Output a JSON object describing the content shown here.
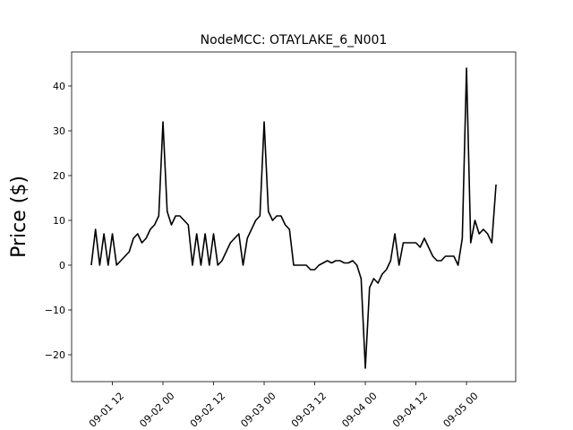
{
  "chart_data": {
    "type": "line",
    "title": "NodeMCC: OTAYLAKE_6_N001",
    "y_label": "Price ($)",
    "x": [
      "09-01 07:00",
      "09-01 08:00",
      "09-01 09:00",
      "09-01 10:00",
      "09-01 11:00",
      "09-01 12:00",
      "09-01 13:00",
      "09-01 14:00",
      "09-01 15:00",
      "09-01 16:00",
      "09-01 17:00",
      "09-01 18:00",
      "09-01 19:00",
      "09-01 20:00",
      "09-01 21:00",
      "09-01 22:00",
      "09-01 23:00",
      "09-02 00:00",
      "09-02 01:00",
      "09-02 02:00",
      "09-02 03:00",
      "09-02 04:00",
      "09-02 05:00",
      "09-02 06:00",
      "09-02 07:00",
      "09-02 08:00",
      "09-02 09:00",
      "09-02 10:00",
      "09-02 11:00",
      "09-02 12:00",
      "09-02 13:00",
      "09-02 14:00",
      "09-02 15:00",
      "09-02 16:00",
      "09-02 17:00",
      "09-02 18:00",
      "09-02 19:00",
      "09-02 20:00",
      "09-02 21:00",
      "09-02 22:00",
      "09-02 23:00",
      "09-03 00:00",
      "09-03 01:00",
      "09-03 02:00",
      "09-03 03:00",
      "09-03 04:00",
      "09-03 05:00",
      "09-03 06:00",
      "09-03 07:00",
      "09-03 08:00",
      "09-03 09:00",
      "09-03 10:00",
      "09-03 11:00",
      "09-03 12:00",
      "09-03 13:00",
      "09-03 14:00",
      "09-03 15:00",
      "09-03 16:00",
      "09-03 17:00",
      "09-03 18:00",
      "09-03 19:00",
      "09-03 20:00",
      "09-03 21:00",
      "09-03 22:00",
      "09-03 23:00",
      "09-04 00:00",
      "09-04 01:00",
      "09-04 02:00",
      "09-04 03:00",
      "09-04 04:00",
      "09-04 05:00",
      "09-04 06:00",
      "09-04 07:00",
      "09-04 08:00",
      "09-04 09:00",
      "09-04 10:00",
      "09-04 11:00",
      "09-04 12:00",
      "09-04 13:00",
      "09-04 14:00",
      "09-04 15:00",
      "09-04 16:00",
      "09-04 17:00",
      "09-04 18:00",
      "09-04 19:00",
      "09-04 20:00",
      "09-04 21:00",
      "09-04 22:00",
      "09-04 23:00",
      "09-05 00:00",
      "09-05 01:00",
      "09-05 02:00",
      "09-05 03:00",
      "09-05 04:00",
      "09-05 05:00",
      "09-05 06:00",
      "09-05 07:00"
    ],
    "series": [
      {
        "color": "#000000",
        "values": [
          0,
          8,
          0,
          7,
          0,
          7,
          0,
          1,
          2,
          3,
          6,
          7,
          5,
          6,
          8,
          9,
          11,
          32,
          12,
          9,
          11,
          11,
          10,
          9,
          0,
          7,
          0,
          7,
          0,
          7,
          0,
          1,
          3,
          5,
          6,
          7,
          0,
          6,
          8,
          10,
          11,
          32,
          12,
          10,
          11,
          11,
          9,
          8,
          0,
          0,
          0,
          0,
          -1,
          -1,
          0,
          0.5,
          1,
          0.5,
          1,
          1,
          0.5,
          0.5,
          1,
          0,
          -3,
          -23,
          -5,
          -3,
          -4,
          -2,
          -1,
          1,
          7,
          0,
          5,
          5,
          5,
          5,
          4,
          6,
          4,
          2,
          1,
          1,
          2,
          2,
          2,
          0,
          6,
          44,
          5,
          10,
          7,
          8,
          7,
          5,
          18
        ]
      }
    ],
    "xlim": [
      "09-01 02:20",
      "09-05 11:40"
    ],
    "xticks": [
      {
        "value": "09-01 12:00",
        "label": "09-01 12"
      },
      {
        "value": "09-02 00:00",
        "label": "09-02 00"
      },
      {
        "value": "09-02 12:00",
        "label": "09-02 12"
      },
      {
        "value": "09-03 00:00",
        "label": "09-03 00"
      },
      {
        "value": "09-03 12:00",
        "label": "09-03 12"
      },
      {
        "value": "09-04 00:00",
        "label": "09-04 00"
      },
      {
        "value": "09-04 12:00",
        "label": "09-04 12"
      },
      {
        "value": "09-05 00:00",
        "label": "09-05 00"
      }
    ],
    "ylim": [
      -26,
      47.6
    ],
    "yticks": [
      {
        "value": -20,
        "label": "−20"
      },
      {
        "value": -10,
        "label": "−10"
      },
      0,
      10,
      20,
      30,
      40
    ]
  }
}
